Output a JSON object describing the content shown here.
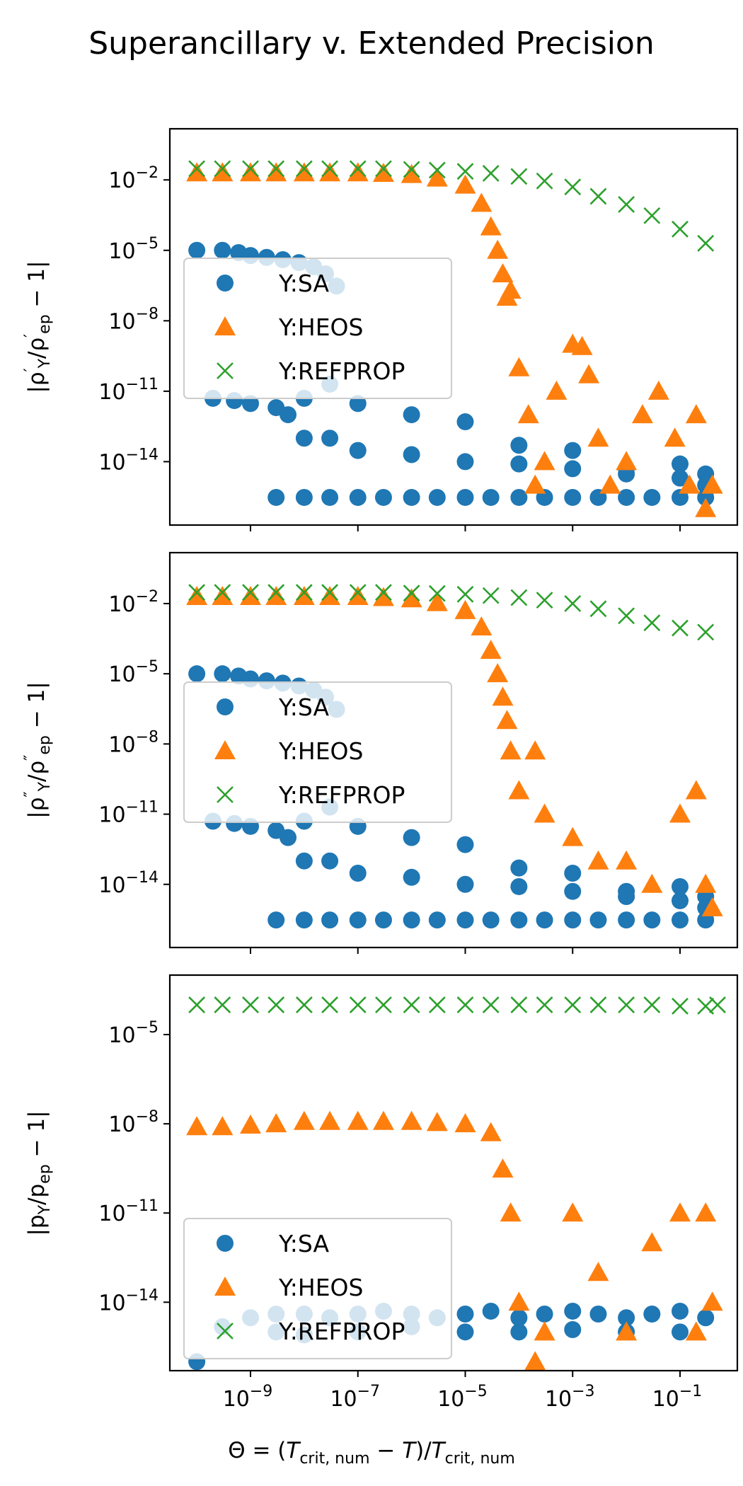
{
  "figure": {
    "title": "Superancillary v. Extended Precision",
    "xlabel": "Θ = (T_crit,num − T)/T_crit,num",
    "x_tick_labels": [
      "10^-9",
      "10^-7",
      "10^-5",
      "10^-3",
      "10^-1"
    ]
  },
  "colors": {
    "SA": "#1f77b4",
    "HEOS": "#ff7f0e",
    "REFPROP": "#2ca02c"
  },
  "chart_data": [
    {
      "type": "scatter",
      "ylabel": "|ρ'_Y/ρ'_ep − 1|",
      "xscale": "log",
      "yscale": "log",
      "xlim": [
        1e-10,
        1
      ],
      "ylim": [
        2e-17,
        1.5
      ],
      "y_tick_labels": [
        "10^-2",
        "10^-5",
        "10^-8",
        "10^-11",
        "10^-14"
      ],
      "legend": {
        "placement": "center-left",
        "entries": [
          "Y:SA",
          "Y:HEOS",
          "Y:REFPROP"
        ]
      },
      "series": [
        {
          "name": "Y:SA",
          "marker": "circle",
          "x": [
            1e-10,
            3e-10,
            6e-10,
            1e-09,
            2e-09,
            4e-09,
            8e-09,
            1.5e-08,
            2.5e-08,
            4e-08,
            2e-10,
            5e-10,
            1e-09,
            3e-09,
            1e-08,
            3e-08,
            1e-07,
            1e-06,
            1e-05,
            0.0001,
            0.001,
            0.01,
            0.1,
            0.3,
            3e-09,
            1e-08,
            3e-08,
            1e-07,
            3e-07,
            1e-06,
            3e-06,
            1e-05,
            3e-05,
            0.0001,
            0.0003,
            0.001,
            0.003,
            0.01,
            0.03,
            0.1,
            0.3,
            5e-09,
            1e-08,
            3e-08,
            1e-07,
            1e-06,
            1e-05,
            0.0001,
            0.001,
            0.01,
            0.1,
            0.3
          ],
          "y": [
            1e-05,
            1e-05,
            8e-06,
            6e-06,
            5e-06,
            4e-06,
            3e-06,
            2e-06,
            1e-06,
            3e-07,
            5e-12,
            4e-12,
            3e-12,
            2e-12,
            5e-12,
            2e-11,
            3e-12,
            1e-12,
            5e-13,
            5e-14,
            3e-14,
            5e-15,
            8e-15,
            3e-15,
            3e-16,
            3e-16,
            3e-16,
            3e-16,
            3e-16,
            3e-16,
            3e-16,
            3e-16,
            3e-16,
            3e-16,
            3e-16,
            3e-16,
            3e-16,
            3e-16,
            3e-16,
            3e-16,
            3e-16,
            1e-12,
            1e-13,
            1e-13,
            3e-14,
            2e-14,
            1e-14,
            8e-15,
            5e-15,
            3e-15,
            2e-15,
            1e-15
          ]
        },
        {
          "name": "Y:HEOS",
          "marker": "triangle",
          "x": [
            1e-10,
            3e-10,
            1e-09,
            3e-09,
            1e-08,
            3e-08,
            1e-07,
            3e-07,
            1e-06,
            3e-06,
            1e-05,
            2e-05,
            3e-05,
            4e-05,
            5e-05,
            6e-05,
            7e-05,
            0.0001,
            0.00015,
            0.0002,
            0.0003,
            0.0005,
            0.001,
            0.0015,
            0.002,
            0.003,
            0.005,
            0.01,
            0.02,
            0.04,
            0.08,
            0.15,
            0.2,
            0.3,
            0.4
          ],
          "y": [
            0.02,
            0.02,
            0.02,
            0.02,
            0.02,
            0.02,
            0.02,
            0.019,
            0.017,
            0.012,
            0.006,
            0.001,
            0.0001,
            1e-05,
            1e-06,
            1e-07,
            2e-07,
            1e-10,
            1e-12,
            1e-15,
            1e-14,
            1e-11,
            1e-09,
            8e-10,
            5e-11,
            1e-13,
            1e-15,
            1e-14,
            1e-12,
            1e-11,
            1e-13,
            1e-15,
            1e-12,
            1e-16,
            1e-15
          ]
        },
        {
          "name": "Y:REFPROP",
          "marker": "x",
          "x": [
            1e-10,
            3e-10,
            1e-09,
            3e-09,
            1e-08,
            3e-08,
            1e-07,
            3e-07,
            1e-06,
            3e-06,
            1e-05,
            3e-05,
            0.0001,
            0.0003,
            0.001,
            0.003,
            0.01,
            0.03,
            0.1,
            0.3
          ],
          "y": [
            0.03,
            0.03,
            0.03,
            0.03,
            0.03,
            0.03,
            0.03,
            0.03,
            0.028,
            0.026,
            0.023,
            0.019,
            0.014,
            0.009,
            0.005,
            0.002,
            0.0009,
            0.0003,
            8e-05,
            2e-05
          ]
        }
      ]
    },
    {
      "type": "scatter",
      "ylabel": "|ρ''_Y/ρ''_ep − 1|",
      "xscale": "log",
      "yscale": "log",
      "xlim": [
        1e-10,
        1
      ],
      "ylim": [
        2e-17,
        1.5
      ],
      "y_tick_labels": [
        "10^-2",
        "10^-5",
        "10^-8",
        "10^-11",
        "10^-14"
      ],
      "legend": {
        "placement": "center-left",
        "entries": [
          "Y:SA",
          "Y:HEOS",
          "Y:REFPROP"
        ]
      },
      "series": [
        {
          "name": "Y:SA",
          "marker": "circle",
          "x": [
            1e-10,
            3e-10,
            6e-10,
            1e-09,
            2e-09,
            4e-09,
            8e-09,
            1.5e-08,
            2.5e-08,
            4e-08,
            2e-10,
            5e-10,
            1e-09,
            3e-09,
            1e-08,
            3e-08,
            1e-07,
            1e-06,
            1e-05,
            0.0001,
            0.001,
            0.01,
            0.1,
            0.3,
            3e-09,
            1e-08,
            3e-08,
            1e-07,
            3e-07,
            1e-06,
            3e-06,
            1e-05,
            3e-05,
            0.0001,
            0.0003,
            0.001,
            0.003,
            0.01,
            0.03,
            0.1,
            0.3,
            5e-09,
            1e-08,
            3e-08,
            1e-07,
            1e-06,
            1e-05,
            0.0001,
            0.001,
            0.01,
            0.1,
            0.3
          ],
          "y": [
            1e-05,
            1e-05,
            8e-06,
            6e-06,
            5e-06,
            4e-06,
            3e-06,
            2e-06,
            1e-06,
            3e-07,
            5e-12,
            4e-12,
            3e-12,
            2e-12,
            5e-12,
            2e-11,
            3e-12,
            1e-12,
            5e-13,
            5e-14,
            3e-14,
            5e-15,
            8e-15,
            3e-15,
            3e-16,
            3e-16,
            3e-16,
            3e-16,
            3e-16,
            3e-16,
            3e-16,
            3e-16,
            3e-16,
            3e-16,
            3e-16,
            3e-16,
            3e-16,
            3e-16,
            3e-16,
            3e-16,
            3e-16,
            1e-12,
            1e-13,
            1e-13,
            3e-14,
            2e-14,
            1e-14,
            8e-15,
            5e-15,
            3e-15,
            2e-15,
            1e-15
          ]
        },
        {
          "name": "Y:HEOS",
          "marker": "triangle",
          "x": [
            1e-10,
            3e-10,
            1e-09,
            3e-09,
            1e-08,
            3e-08,
            1e-07,
            3e-07,
            1e-06,
            3e-06,
            1e-05,
            2e-05,
            3e-05,
            4e-05,
            5e-05,
            6e-05,
            7e-05,
            0.0001,
            0.0002,
            0.0003,
            0.001,
            0.003,
            0.01,
            0.03,
            0.1,
            0.2,
            0.3,
            0.4
          ],
          "y": [
            0.02,
            0.02,
            0.02,
            0.02,
            0.02,
            0.02,
            0.02,
            0.018,
            0.016,
            0.011,
            0.005,
            0.001,
            0.0001,
            1e-05,
            1e-06,
            1e-07,
            5e-09,
            1e-10,
            5e-09,
            1e-11,
            1e-12,
            1e-13,
            1e-13,
            1e-14,
            1e-11,
            1e-10,
            1e-14,
            1e-15
          ]
        },
        {
          "name": "Y:REFPROP",
          "marker": "x",
          "x": [
            1e-10,
            3e-10,
            1e-09,
            3e-09,
            1e-08,
            3e-08,
            1e-07,
            3e-07,
            1e-06,
            3e-06,
            1e-05,
            3e-05,
            0.0001,
            0.0003,
            0.001,
            0.003,
            0.01,
            0.03,
            0.1,
            0.3
          ],
          "y": [
            0.03,
            0.03,
            0.03,
            0.03,
            0.03,
            0.03,
            0.03,
            0.03,
            0.028,
            0.027,
            0.025,
            0.022,
            0.018,
            0.014,
            0.01,
            0.006,
            0.003,
            0.0015,
            0.0009,
            0.0006
          ]
        }
      ]
    },
    {
      "type": "scatter",
      "ylabel": "|p_Y/p_ep − 1|",
      "xscale": "log",
      "yscale": "log",
      "xlim": [
        1e-10,
        1
      ],
      "ylim": [
        5e-17,
        0.001
      ],
      "y_tick_labels": [
        "10^-5",
        "10^-8",
        "10^-11",
        "10^-14"
      ],
      "legend": {
        "placement": "lower-left",
        "entries": [
          "Y:SA",
          "Y:HEOS",
          "Y:REFPROP"
        ]
      },
      "series": [
        {
          "name": "Y:SA",
          "marker": "circle",
          "x": [
            1e-10,
            3e-10,
            1e-09,
            3e-09,
            1e-08,
            3e-08,
            1e-07,
            3e-07,
            1e-06,
            3e-06,
            1e-05,
            3e-05,
            0.0001,
            0.0003,
            0.001,
            0.003,
            0.01,
            0.03,
            0.1,
            0.3,
            3e-09,
            1e-08,
            1e-07,
            1e-06,
            1e-05,
            0.0001,
            0.001,
            0.01,
            0.1
          ],
          "y": [
            1e-16,
            1.5e-15,
            3e-15,
            4e-15,
            4e-15,
            3e-15,
            4e-15,
            5e-15,
            4e-15,
            3e-15,
            4e-15,
            5e-15,
            3e-15,
            4e-15,
            5e-15,
            4e-15,
            3e-15,
            4e-15,
            5e-15,
            3e-15,
            1e-15,
            8e-16,
            1e-15,
            1.5e-15,
            1e-15,
            1e-15,
            1.2e-15,
            1e-15,
            1e-15
          ]
        },
        {
          "name": "Y:HEOS",
          "marker": "triangle",
          "x": [
            1e-10,
            3e-10,
            1e-09,
            3e-09,
            1e-08,
            3e-08,
            1e-07,
            3e-07,
            1e-06,
            3e-06,
            1e-05,
            3e-05,
            5e-05,
            7e-05,
            0.0001,
            0.0002,
            0.0003,
            0.001,
            0.003,
            0.01,
            0.03,
            0.1,
            0.2,
            0.3,
            0.4
          ],
          "y": [
            8e-09,
            8e-09,
            9e-09,
            1e-08,
            1.2e-08,
            1.2e-08,
            1.2e-08,
            1.2e-08,
            1.2e-08,
            1.1e-08,
            1e-08,
            5e-09,
            3e-10,
            1e-11,
            1e-14,
            1e-16,
            1e-15,
            1e-11,
            1e-13,
            1e-15,
            1e-12,
            1e-11,
            1e-15,
            1e-11,
            1e-14
          ]
        },
        {
          "name": "Y:REFPROP",
          "marker": "x",
          "x": [
            1e-10,
            3e-10,
            1e-09,
            3e-09,
            1e-08,
            3e-08,
            1e-07,
            3e-07,
            1e-06,
            3e-06,
            1e-05,
            3e-05,
            0.0001,
            0.0003,
            0.001,
            0.003,
            0.01,
            0.03,
            0.1,
            0.3,
            0.5
          ],
          "y": [
            0.0001,
            0.0001,
            0.0001,
            0.0001,
            0.0001,
            0.0001,
            0.0001,
            0.0001,
            0.0001,
            0.0001,
            0.0001,
            0.0001,
            0.0001,
            0.0001,
            0.0001,
            0.0001,
            0.0001,
            0.0001,
            9e-05,
            9e-05,
            0.0001
          ]
        }
      ]
    }
  ]
}
